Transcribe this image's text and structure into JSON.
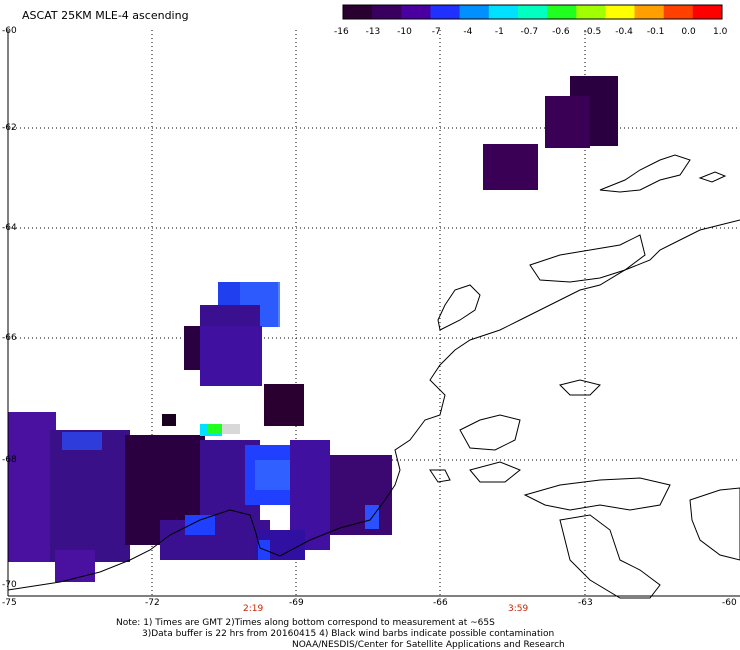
{
  "title": "ASCAT 25KM MLE-4 ascending",
  "colorbar": {
    "tick_labels": [
      "-16",
      "-13",
      "-10",
      "-7",
      "-4",
      "-1",
      "-0.7",
      "-0.6",
      "-0.5",
      "-0.4",
      "-0.1",
      "0.0",
      "1.0"
    ],
    "colors": [
      "#2a0030",
      "#3a0060",
      "#4a00a0",
      "#2030ff",
      "#0090ff",
      "#00e0ff",
      "#00ffc0",
      "#20ff20",
      "#a0ff00",
      "#ffff00",
      "#ffa000",
      "#ff4000",
      "#ff0000"
    ]
  },
  "y_axis_labels": [
    "-60",
    "-62",
    "-64",
    "-66",
    "-68",
    "-70"
  ],
  "x_axis_labels": [
    "-75",
    "-72",
    "-69",
    "-66",
    "-63",
    "-60"
  ],
  "time_labels": [
    "2:19",
    "3:59"
  ],
  "notes": {
    "line1": "Note: 1) Times are GMT 2)Times along bottom correspond to measurement at ~65S",
    "line2": "3)Data buffer is 22 hrs from 20160415 4) Black wind barbs indicate possible contamination",
    "line3": "NOAA/NESDIS/Center for Satellite Applications and Research"
  },
  "colors": {
    "gridline": "#000000",
    "coastline": "#000000",
    "time_text": "#cc2200"
  }
}
